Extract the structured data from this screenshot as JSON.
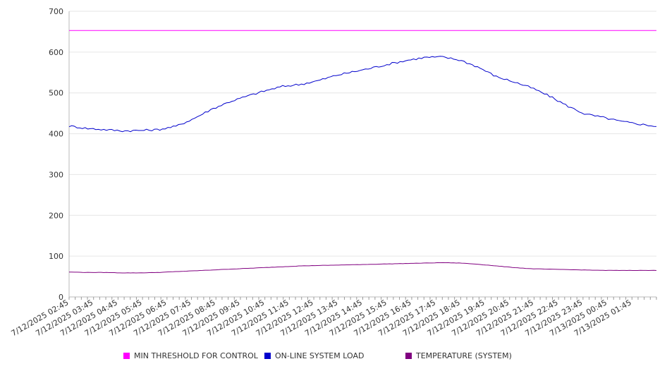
{
  "chart_data": {
    "type": "line",
    "ylim": [
      0,
      700
    ],
    "yticks": [
      0,
      100,
      200,
      300,
      400,
      500,
      600,
      700
    ],
    "x_tick_labels": [
      "7/12/2025 02:45",
      "7/12/2025 03:45",
      "7/12/2025 04:45",
      "7/12/2025 05:45",
      "7/12/2025 06:45",
      "7/12/2025 07:45",
      "7/12/2025 08:45",
      "7/12/2025 09:45",
      "7/12/2025 10:45",
      "7/12/2025 11:45",
      "7/12/2025 12:45",
      "7/12/2025 13:45",
      "7/12/2025 14:45",
      "7/12/2025 15:45",
      "7/12/2025 16:45",
      "7/12/2025 17:45",
      "7/12/2025 18:45",
      "7/12/2025 19:45",
      "7/12/2025 20:45",
      "7/12/2025 21:45",
      "7/12/2025 22:45",
      "7/12/2025 23:45",
      "7/13/2025 00:45",
      "7/13/2025 01:45"
    ],
    "grid": true,
    "legend_position": "bottom",
    "series": [
      {
        "name": "MIN THRESHOLD FOR CONTROL",
        "color": "#ff00ff",
        "values": [
          653,
          653,
          653,
          653,
          653,
          653,
          653,
          653,
          653,
          653,
          653,
          653,
          653,
          653,
          653,
          653,
          653,
          653,
          653,
          653,
          653,
          653,
          653,
          653,
          653
        ]
      },
      {
        "name": "ON-LINE SYSTEM LOAD",
        "color": "#0000cc",
        "values": [
          419,
          413,
          410,
          407,
          408,
          410,
          418,
          437,
          460,
          478,
          492,
          505,
          516,
          521,
          530,
          543,
          552,
          561,
          571,
          580,
          587,
          588,
          580,
          563,
          540,
          527,
          512,
          492,
          468,
          448,
          440,
          430,
          424,
          418
        ]
      },
      {
        "name": "TEMPERATURE (SYSTEM)",
        "color": "#800080",
        "values": [
          61,
          60,
          60,
          59,
          59,
          60,
          62,
          64,
          66,
          68,
          70,
          72,
          74,
          76,
          77,
          78,
          79,
          80,
          81,
          82,
          83,
          84,
          83,
          80,
          76,
          72,
          69,
          68,
          67,
          66,
          65,
          65,
          65,
          65
        ]
      }
    ]
  }
}
